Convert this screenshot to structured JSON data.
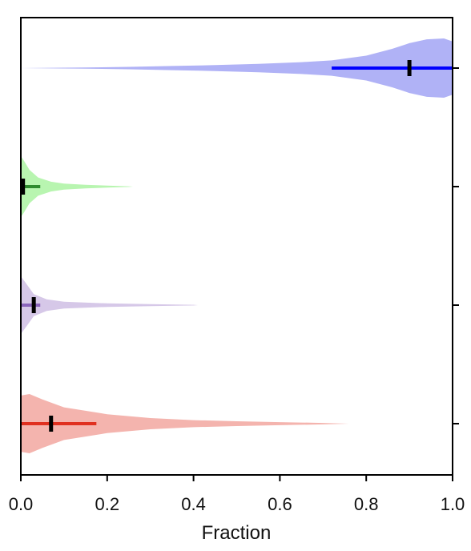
{
  "chart_data": {
    "type": "violin",
    "orientation": "horizontal",
    "xlabel": "Fraction",
    "xlim": [
      0.0,
      1.0
    ],
    "xticks": [
      0.0,
      0.2,
      0.4,
      0.6,
      0.8,
      1.0
    ],
    "xtick_labels": [
      "0.0",
      "0.2",
      "0.4",
      "0.6",
      "0.8",
      "1.0"
    ],
    "grid": false,
    "series": [
      {
        "color": "#0000ff",
        "fill": "#b0b2f6",
        "interval": [
          0.72,
          1.0
        ],
        "median": 0.9,
        "density": [
          [
            0.0,
            0.0
          ],
          [
            0.05,
            0.005
          ],
          [
            0.15,
            0.02
          ],
          [
            0.25,
            0.04
          ],
          [
            0.35,
            0.07
          ],
          [
            0.45,
            0.1
          ],
          [
            0.55,
            0.14
          ],
          [
            0.65,
            0.2
          ],
          [
            0.72,
            0.26
          ],
          [
            0.8,
            0.42
          ],
          [
            0.86,
            0.65
          ],
          [
            0.9,
            0.84
          ],
          [
            0.94,
            0.97
          ],
          [
            0.98,
            1.0
          ],
          [
            1.0,
            0.9
          ]
        ]
      },
      {
        "color": "#2e8b2e",
        "fill": "#b8f5b0",
        "interval": [
          0.0,
          0.045
        ],
        "median": 0.005,
        "density": [
          [
            0.0,
            1.0
          ],
          [
            0.005,
            0.9
          ],
          [
            0.02,
            0.55
          ],
          [
            0.04,
            0.3
          ],
          [
            0.07,
            0.16
          ],
          [
            0.1,
            0.1
          ],
          [
            0.15,
            0.06
          ],
          [
            0.2,
            0.035
          ],
          [
            0.25,
            0.01
          ],
          [
            0.26,
            0.0
          ]
        ]
      },
      {
        "color": "#8a64bb",
        "fill": "#d6c8e8",
        "interval": [
          0.0,
          0.045
        ],
        "median": 0.03,
        "density": [
          [
            0.0,
            1.0
          ],
          [
            0.01,
            0.8
          ],
          [
            0.03,
            0.38
          ],
          [
            0.06,
            0.2
          ],
          [
            0.1,
            0.12
          ],
          [
            0.2,
            0.06
          ],
          [
            0.3,
            0.035
          ],
          [
            0.4,
            0.01
          ],
          [
            0.41,
            0.0
          ]
        ]
      },
      {
        "color": "#e03020",
        "fill": "#f4b4ae",
        "interval": [
          0.0,
          0.175
        ],
        "median": 0.07,
        "density": [
          [
            0.0,
            0.95
          ],
          [
            0.02,
            1.0
          ],
          [
            0.05,
            0.82
          ],
          [
            0.1,
            0.55
          ],
          [
            0.2,
            0.32
          ],
          [
            0.3,
            0.19
          ],
          [
            0.4,
            0.12
          ],
          [
            0.5,
            0.08
          ],
          [
            0.6,
            0.05
          ],
          [
            0.7,
            0.025
          ],
          [
            0.76,
            0.0
          ]
        ]
      }
    ]
  }
}
